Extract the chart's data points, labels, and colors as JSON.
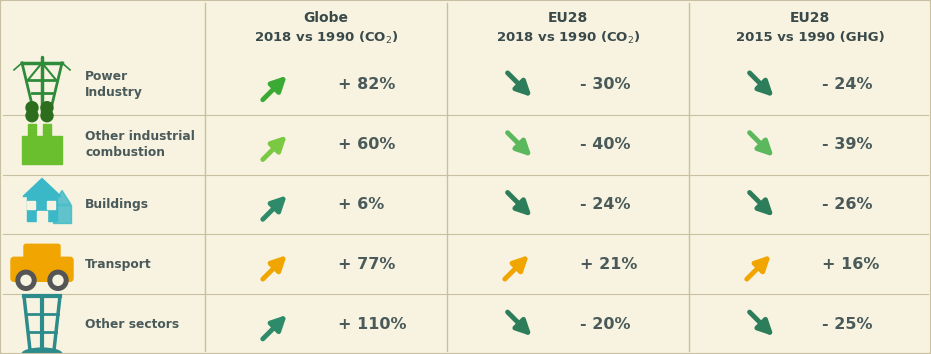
{
  "bg_color": "#f7f3e0",
  "separator_color": "#c8c0a0",
  "col_separator_color": "#c8c0a0",
  "text_color": "#4a5a5a",
  "title_color": "#3a4a4a",
  "col_headers": [
    [
      "Globe",
      "2018 vs 1990 (CO₂)"
    ],
    [
      "EU28",
      "2018 vs 1990 (CO₂)"
    ],
    [
      "EU28",
      "2015 vs 1990 (GHG)"
    ]
  ],
  "row_labels": [
    [
      "Power",
      "Industry"
    ],
    [
      "Other industrial",
      "combustion"
    ],
    [
      "Buildings",
      ""
    ],
    [
      "Transport",
      ""
    ],
    [
      "Other sectors",
      ""
    ]
  ],
  "row_icon_colors": [
    "#2d8b3a",
    "#6abf2e",
    "#3ab8c8",
    "#f0a500",
    "#2e8b8b"
  ],
  "data": [
    [
      {
        "value": "+ 82%",
        "direction": "up",
        "color": "#3aaa35"
      },
      {
        "value": "+ 60%",
        "direction": "up",
        "color": "#7bc843"
      },
      {
        "value": "+ 6%",
        "direction": "up",
        "color": "#2e8b6a"
      },
      {
        "value": "+ 77%",
        "direction": "up",
        "color": "#f0a500"
      },
      {
        "value": "+ 110%",
        "direction": "up",
        "color": "#2e8b6a"
      }
    ],
    [
      {
        "value": "- 30%",
        "direction": "down",
        "color": "#2e7d5a"
      },
      {
        "value": "- 40%",
        "direction": "down",
        "color": "#5cb85c"
      },
      {
        "value": "- 24%",
        "direction": "down",
        "color": "#2e7d5a"
      },
      {
        "value": "+ 21%",
        "direction": "up",
        "color": "#f0a500"
      },
      {
        "value": "- 20%",
        "direction": "down",
        "color": "#2e7d5a"
      }
    ],
    [
      {
        "value": "- 24%",
        "direction": "down",
        "color": "#2e7d5a"
      },
      {
        "value": "- 39%",
        "direction": "down",
        "color": "#5cb85c"
      },
      {
        "value": "- 26%",
        "direction": "down",
        "color": "#2e7d5a"
      },
      {
        "value": "+ 16%",
        "direction": "up",
        "color": "#f0a500"
      },
      {
        "value": "- 25%",
        "direction": "down",
        "color": "#2e7d5a"
      }
    ]
  ]
}
